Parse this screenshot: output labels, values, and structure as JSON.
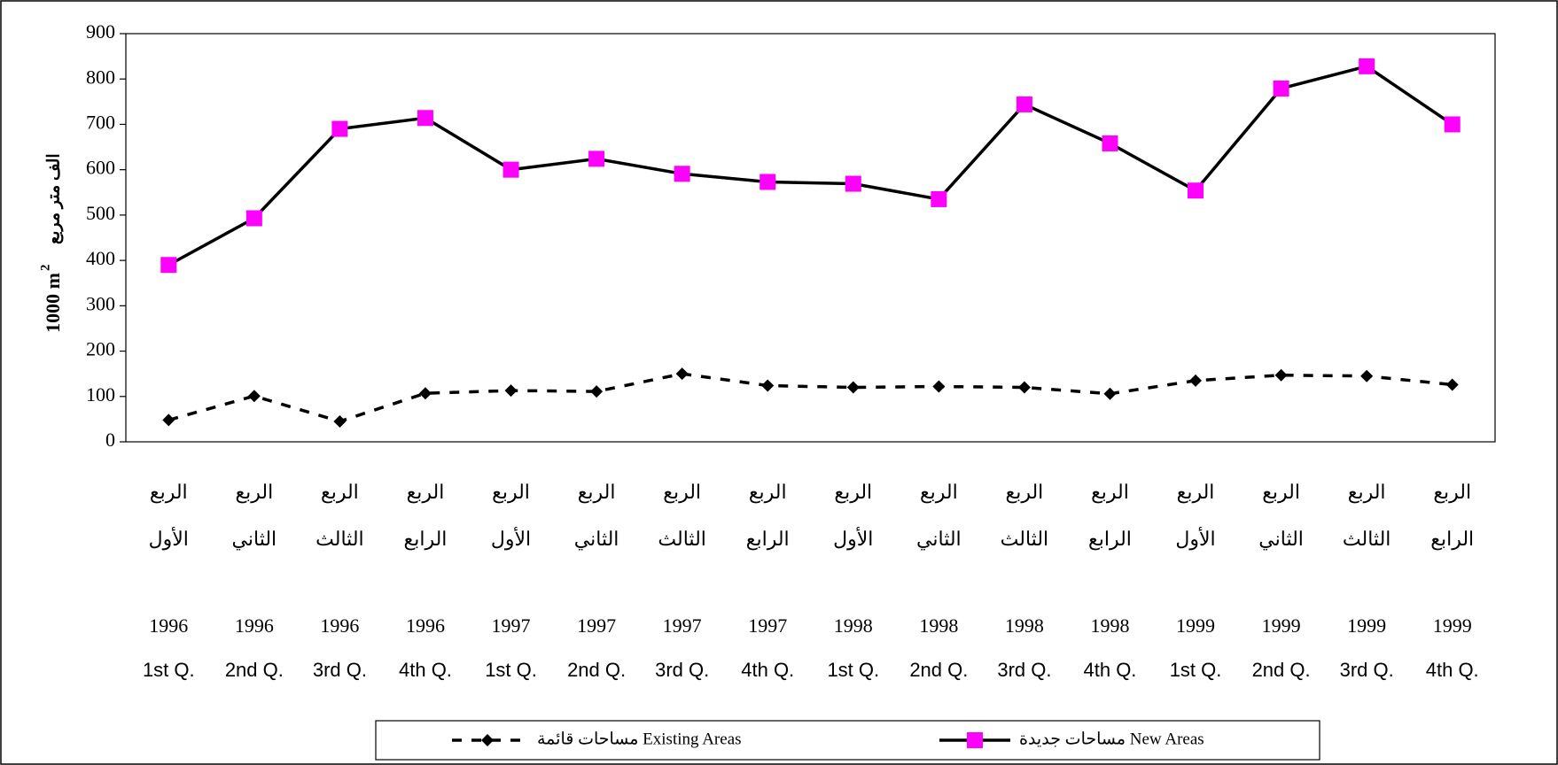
{
  "chart_data": {
    "type": "line",
    "ylabel": {
      "main": "1000 m",
      "sup": "2",
      "arabic": "الف متر مربع"
    },
    "categories": [
      [
        "الربع",
        "الأول",
        "1996",
        "1st Q."
      ],
      [
        "الربع",
        "الثاني",
        "1996",
        "2nd Q."
      ],
      [
        "الربع",
        "الثالث",
        "1996",
        "3rd Q."
      ],
      [
        "الربع",
        "الرابع",
        "1996",
        "4th Q."
      ],
      [
        "الربع",
        "الأول",
        "1997",
        "1st Q."
      ],
      [
        "الربع",
        "الثاني",
        "1997",
        "2nd Q."
      ],
      [
        "الربع",
        "الثالث",
        "1997",
        "3rd Q."
      ],
      [
        "الربع",
        "الرابع",
        "1997",
        "4th Q."
      ],
      [
        "الربع",
        "الأول",
        "1998",
        "1st Q."
      ],
      [
        "الربع",
        "الثاني",
        "1998",
        "2nd Q."
      ],
      [
        "الربع",
        "الثالث",
        "1998",
        "3rd Q."
      ],
      [
        "الربع",
        "الرابع",
        "1998",
        "4th Q."
      ],
      [
        "الربع",
        "الأول",
        "1999",
        "1st Q."
      ],
      [
        "الربع",
        "الثاني",
        "1999",
        "2nd Q."
      ],
      [
        "الربع",
        "الثالث",
        "1999",
        "3rd Q."
      ],
      [
        "الربع",
        "الرابع",
        "1999",
        "4th Q."
      ]
    ],
    "series": [
      {
        "name": "مساحات قائمة Existing Areas",
        "color": "#000000",
        "marker": "diamond",
        "dash": true,
        "values": [
          48,
          101,
          45,
          107,
          113,
          111,
          150,
          124,
          120,
          122,
          120,
          106,
          135,
          147,
          145,
          126
        ]
      },
      {
        "name": "مساحات جديدة New Areas",
        "color": "#ff00ff",
        "marker": "square",
        "dash": false,
        "values": [
          390,
          493,
          690,
          714,
          600,
          624,
          591,
          573,
          569,
          535,
          744,
          658,
          554,
          779,
          828,
          700
        ]
      }
    ],
    "ylim": [
      0,
      900
    ],
    "yticks": [
      0,
      100,
      200,
      300,
      400,
      500,
      600,
      700,
      800,
      900
    ],
    "grid": false
  }
}
